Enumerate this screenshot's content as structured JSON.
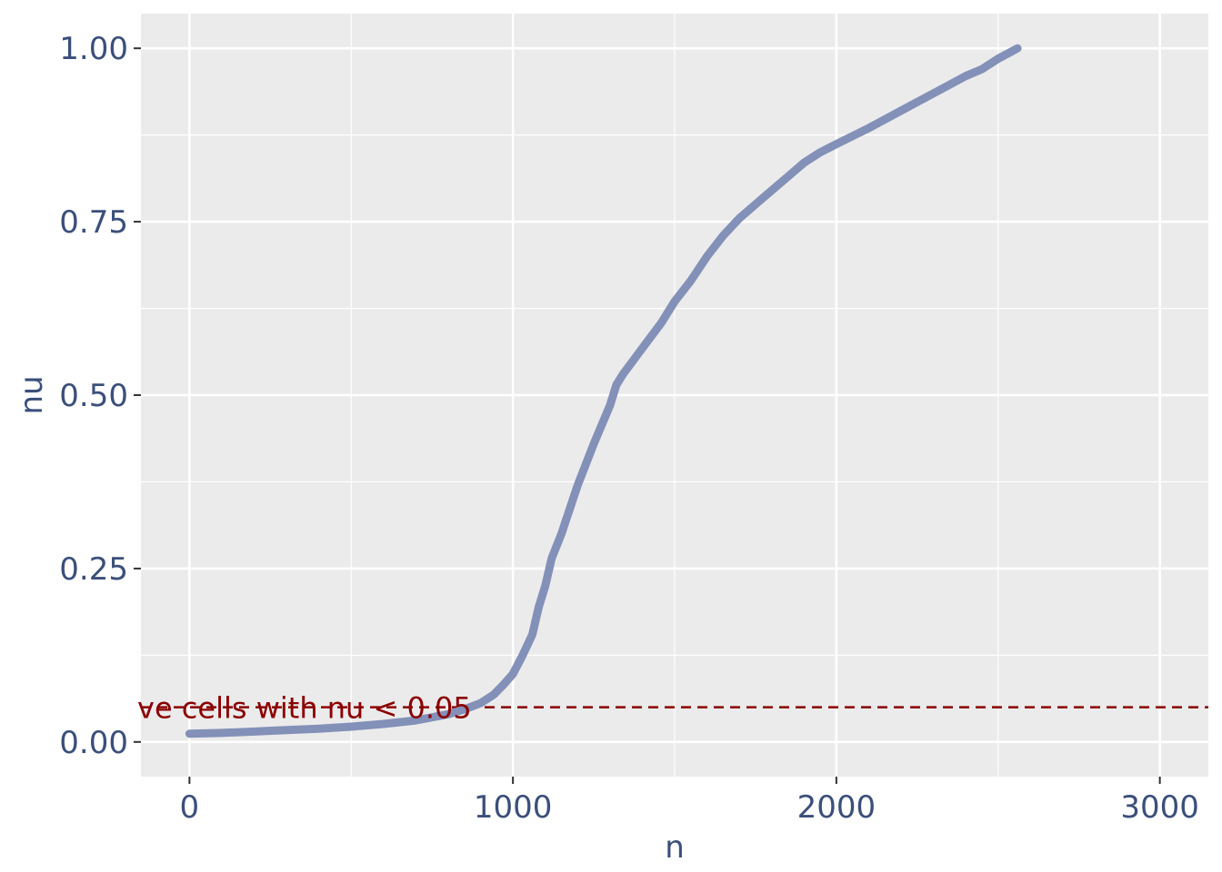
{
  "chart_data": {
    "type": "line",
    "title": "",
    "xlabel": "n",
    "ylabel": "nu",
    "xlim": [
      -150,
      3150
    ],
    "ylim": [
      -0.05,
      1.05
    ],
    "x_ticks": [
      0,
      1000,
      2000,
      3000
    ],
    "x_tick_labels": [
      "0",
      "1000",
      "2000",
      "3000"
    ],
    "x_minor_ticks": [
      500,
      1500,
      2500
    ],
    "y_ticks": [
      0.0,
      0.25,
      0.5,
      0.75,
      1.0
    ],
    "y_tick_labels": [
      "0.00",
      "0.25",
      "0.50",
      "0.75",
      "1.00"
    ],
    "y_minor_ticks": [
      0.125,
      0.375,
      0.625,
      0.875
    ],
    "grid": true,
    "threshold": {
      "y": 0.05,
      "label": "ve cells with nu < 0.05",
      "color": "#8b0000",
      "style": "dashed"
    },
    "series": [
      {
        "color": "#8390b8",
        "x": [
          0,
          100,
          200,
          300,
          400,
          500,
          600,
          700,
          800,
          850,
          900,
          940,
          970,
          1000,
          1030,
          1060,
          1080,
          1100,
          1120,
          1150,
          1200,
          1250,
          1300,
          1320,
          1340,
          1380,
          1420,
          1460,
          1500,
          1550,
          1600,
          1650,
          1700,
          1750,
          1800,
          1850,
          1900,
          1950,
          2000,
          2100,
          2200,
          2300,
          2400,
          2450,
          2500,
          2560
        ],
        "y": [
          0.012,
          0.013,
          0.015,
          0.017,
          0.019,
          0.022,
          0.026,
          0.031,
          0.04,
          0.047,
          0.056,
          0.068,
          0.082,
          0.098,
          0.125,
          0.155,
          0.195,
          0.225,
          0.265,
          0.3,
          0.37,
          0.43,
          0.485,
          0.515,
          0.53,
          0.555,
          0.58,
          0.605,
          0.635,
          0.665,
          0.7,
          0.73,
          0.755,
          0.775,
          0.795,
          0.815,
          0.835,
          0.85,
          0.862,
          0.885,
          0.91,
          0.935,
          0.96,
          0.97,
          0.985,
          1.0
        ]
      }
    ]
  }
}
